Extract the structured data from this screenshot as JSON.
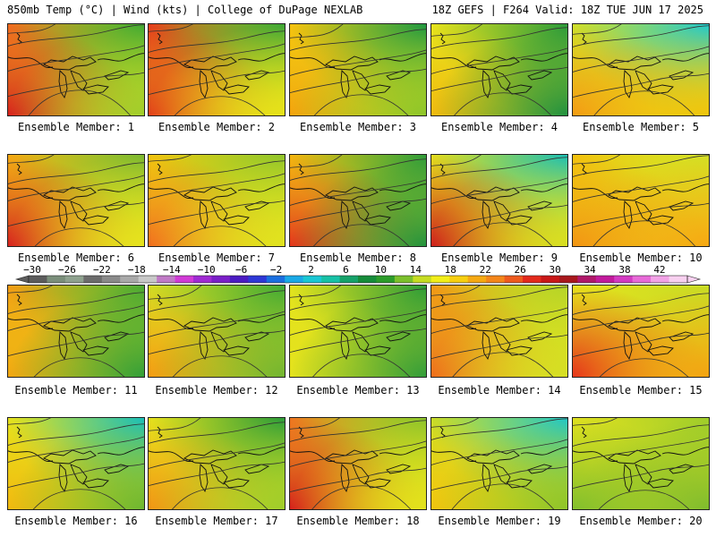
{
  "header": {
    "left": "850mb Temp (°C) | Wind (kts) | College of DuPage NEXLAB",
    "right": "18Z GEFS | F264 Valid: 18Z TUE JUN 17 2025"
  },
  "panels": [
    {
      "label": "Ensemble Member: 1",
      "colors": {
        "tl": "#f36a1f",
        "tr": "#3fa933",
        "bl": "#d81d1d",
        "br": "#9fcd2c"
      }
    },
    {
      "label": "Ensemble Member: 2",
      "colors": {
        "tl": "#e83a1c",
        "tr": "#3aa536",
        "bl": "#e33b1a",
        "br": "#e6e21a"
      }
    },
    {
      "label": "Ensemble Member: 3",
      "colors": {
        "tl": "#f7c20e",
        "tr": "#1e9741",
        "bl": "#f5a10d",
        "br": "#8cc52a"
      }
    },
    {
      "label": "Ensemble Member: 4",
      "colors": {
        "tl": "#e8e41d",
        "tr": "#2a9b3b",
        "bl": "#f3b90f",
        "br": "#1c8f40"
      }
    },
    {
      "label": "Ensemble Member: 5",
      "colors": {
        "tl": "#d0df2a",
        "tr": "#1ec9cf",
        "bl": "#f49a14",
        "br": "#f0c40d"
      }
    },
    {
      "label": "Ensemble Member: 6",
      "colors": {
        "tl": "#f6a913",
        "tr": "#7ab731",
        "bl": "#d81e1e",
        "br": "#e6e31e"
      }
    },
    {
      "label": "Ensemble Member: 7",
      "colors": {
        "tl": "#f3c40e",
        "tr": "#8fc42b",
        "bl": "#f36c1e",
        "br": "#e1e31f"
      }
    },
    {
      "label": "Ensemble Member: 8",
      "colors": {
        "tl": "#f6b60f",
        "tr": "#2f9c3a",
        "bl": "#e6321c",
        "br": "#1f913e"
      }
    },
    {
      "label": "Ensemble Member: 9",
      "colors": {
        "tl": "#e5de1c",
        "tr": "#19bfb6",
        "bl": "#ce1b1b",
        "br": "#d8df22"
      }
    },
    {
      "label": "Ensemble Member: 10",
      "colors": {
        "tl": "#f4c10e",
        "tr": "#d4df24",
        "bl": "#f39313",
        "br": "#f7a713"
      }
    },
    {
      "label": "Ensemble Member: 11",
      "colors": {
        "tl": "#f39a14",
        "tr": "#4aa833",
        "bl": "#f4a511",
        "br": "#2e9d39"
      }
    },
    {
      "label": "Ensemble Member: 12",
      "colors": {
        "tl": "#d4dc24",
        "tr": "#3ea935",
        "bl": "#f69b13",
        "br": "#6fb431"
      }
    },
    {
      "label": "Ensemble Member: 13",
      "colors": {
        "tl": "#e2e31e",
        "tr": "#2c9c38",
        "bl": "#e4e21d",
        "br": "#2e9b3a"
      }
    },
    {
      "label": "Ensemble Member: 14",
      "colors": {
        "tl": "#f39615",
        "tr": "#b4d428",
        "bl": "#ef6a1c",
        "br": "#d5df24"
      }
    },
    {
      "label": "Ensemble Member: 15",
      "colors": {
        "tl": "#e7e21c",
        "tr": "#c7dc26",
        "bl": "#e6321b",
        "br": "#f3a212"
      }
    },
    {
      "label": "Ensemble Member: 16",
      "colors": {
        "tl": "#e7e21c",
        "tr": "#19bfbb",
        "bl": "#f3b80f",
        "br": "#6bb631"
      }
    },
    {
      "label": "Ensemble Member: 17",
      "colors": {
        "tl": "#e8e21c",
        "tr": "#2a9c39",
        "bl": "#f39414",
        "br": "#9dcd2b"
      }
    },
    {
      "label": "Ensemble Member: 18",
      "colors": {
        "tl": "#f07520",
        "tr": "#8cc32b",
        "bl": "#d61c1c",
        "br": "#e3e21c"
      }
    },
    {
      "label": "Ensemble Member: 19",
      "colors": {
        "tl": "#c9dc27",
        "tr": "#1ec7c9",
        "bl": "#f2c40e",
        "br": "#8dc42a"
      }
    },
    {
      "label": "Ensemble Member: 20",
      "colors": {
        "tl": "#dfe020",
        "tr": "#9fcd2b",
        "bl": "#82bf2d",
        "br": "#7dbb2e"
      }
    }
  ],
  "colorbar": {
    "ticks": [
      "−30",
      "−26",
      "−22",
      "−18",
      "−14",
      "−10",
      "−6",
      "−2",
      "2",
      "6",
      "10",
      "14",
      "18",
      "22",
      "26",
      "30",
      "34",
      "38",
      "42"
    ],
    "colors": [
      "#5c5c5c",
      "#7b8f7b",
      "#8fa28f",
      "#6c6c6c",
      "#8a8a8a",
      "#a9a9a9",
      "#c8c8c8",
      "#c07ac6",
      "#d13ad6",
      "#a02ad3",
      "#7a1fc8",
      "#4b1bc2",
      "#2e37d6",
      "#1a6fe0",
      "#1aa9e6",
      "#1ac7d4",
      "#17c1a6",
      "#16a26a",
      "#168c3a",
      "#2c9c2a",
      "#7cc02c",
      "#c6dc22",
      "#f2ee18",
      "#f7cf10",
      "#f6a912",
      "#f4861a",
      "#ee5a1e",
      "#e32a1c",
      "#c91818",
      "#a8181c",
      "#b0186a",
      "#c21a9c",
      "#d33ac2",
      "#e86ad8",
      "#f2a2e6",
      "#f8d0f0"
    ]
  }
}
